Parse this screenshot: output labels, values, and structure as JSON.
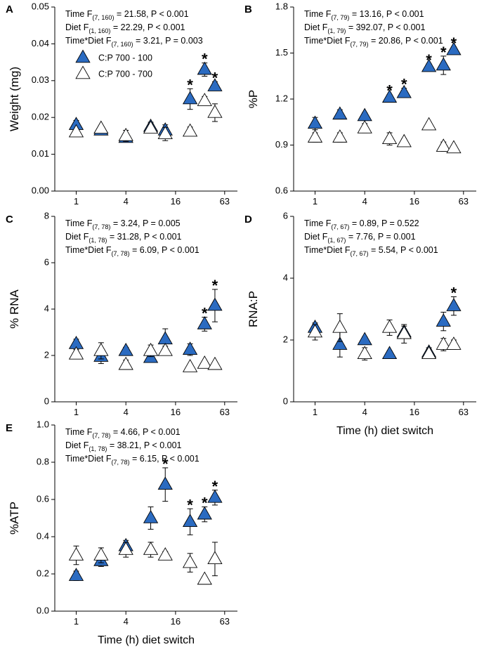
{
  "colors": {
    "filled": "#2b6bc1",
    "filled_dark": "#1a3e9c",
    "open": "#ffffff",
    "stroke": "#000000"
  },
  "x_axis": {
    "label": "Time (h) diet switch",
    "tick_values": [
      1,
      4,
      16,
      63
    ],
    "tick_labels": [
      "1",
      "4",
      "16",
      "63"
    ],
    "scale": "log2",
    "xlim": [
      0.55,
      90
    ]
  },
  "legend": {
    "entries": [
      {
        "label": "C:P 700 - 100",
        "marker": "filled-triangle"
      },
      {
        "label": "C:P 700 - 700",
        "marker": "open-triangle"
      }
    ]
  },
  "chart_data": [
    {
      "type": "scatter",
      "letter": "A",
      "ylabel": "Weight (mg)",
      "ylim": [
        0,
        0.05
      ],
      "yticks": [
        0,
        0.01,
        0.02,
        0.03,
        0.04,
        0.05
      ],
      "ytick_labels": [
        "0.00",
        "0.01",
        "0.02",
        "0.03",
        "0.04",
        "0.05"
      ],
      "x": [
        1,
        2,
        4,
        8,
        12,
        24,
        36,
        48
      ],
      "stats": [
        {
          "prefix": "Time F",
          "sub": "(7, 160)",
          "rest": " = 21.58, P < 0.001"
        },
        {
          "prefix": "Diet F",
          "sub": "(1, 160)",
          "rest": " = 22.29, P < 0.001"
        },
        {
          "prefix": "Time*Diet F",
          "sub": "(7, 160)",
          "rest": " = 3.21, P = 0.003"
        }
      ],
      "series": [
        {
          "name": "C:P 700 - 100",
          "style": "filled",
          "values": [
            0.018,
            0.0165,
            0.0145,
            0.0175,
            0.0165,
            0.025,
            0.033,
            0.0285
          ],
          "errors": [
            0.0012,
            0.0006,
            0.0006,
            0.0012,
            0.0015,
            0.0028,
            0.0018,
            0.0012
          ]
        },
        {
          "name": "C:P 700 - 700",
          "style": "open",
          "values": [
            0.016,
            0.017,
            0.015,
            0.017,
            0.0155,
            0.0162,
            0.0245,
            0.0213
          ],
          "errors": [
            0.0007,
            0.0004,
            0.0015,
            0.0012,
            0.0018,
            0.0012,
            0.0012,
            0.0024
          ]
        }
      ],
      "significant_x": [
        24,
        36,
        48
      ],
      "star_label": "*"
    },
    {
      "type": "scatter",
      "letter": "B",
      "ylabel": "%P",
      "ylim": [
        0.6,
        1.8
      ],
      "yticks": [
        0.6,
        0.9,
        1.2,
        1.5,
        1.8
      ],
      "ytick_labels": [
        "0.6",
        "0.9",
        "1.2",
        "1.5",
        "1.8"
      ],
      "x": [
        1,
        2,
        4,
        8,
        12,
        24,
        36,
        48
      ],
      "stats": [
        {
          "prefix": "Time F",
          "sub": "(7, 79)",
          "rest": " = 13.16, P < 0.001"
        },
        {
          "prefix": "Diet F",
          "sub": "(1, 79)",
          "rest": " = 392.07, P < 0.001"
        },
        {
          "prefix": "Time*Diet F",
          "sub": "(7, 79)",
          "rest": " = 20.86, P < 0.001"
        }
      ],
      "series": [
        {
          "name": "C:P 700 - 100",
          "style": "filled",
          "values": [
            1.04,
            1.1,
            1.09,
            1.21,
            1.24,
            1.41,
            1.42,
            1.52
          ],
          "errors": [
            0.04,
            0.03,
            0.02,
            0.02,
            0.03,
            0.02,
            0.06,
            0.02
          ]
        },
        {
          "name": "C:P 700 - 700",
          "style": "open",
          "values": [
            0.95,
            0.95,
            1.01,
            0.94,
            0.92,
            1.03,
            0.89,
            0.88
          ],
          "errors": [
            0.03,
            0.03,
            0.03,
            0.04,
            0.02,
            0.02,
            0.03,
            0.02
          ]
        }
      ],
      "significant_x": [
        8,
        12,
        24,
        36,
        48
      ],
      "star_label": "*"
    },
    {
      "type": "scatter",
      "letter": "C",
      "ylabel": "% RNA",
      "ylim": [
        0,
        8
      ],
      "yticks": [
        0,
        2,
        4,
        6,
        8
      ],
      "ytick_labels": [
        "0",
        "2",
        "4",
        "6",
        "8"
      ],
      "x": [
        1,
        2,
        4,
        8,
        12,
        24,
        36,
        48
      ],
      "stats": [
        {
          "prefix": "Time F",
          "sub": "(7, 78)",
          "rest": " = 3.24, P = 0.005"
        },
        {
          "prefix": "Diet F",
          "sub": "(1, 78)",
          "rest": " = 31.28, P < 0.001"
        },
        {
          "prefix": "Time*Diet F",
          "sub": "(7, 78)",
          "rest": " = 6.09, P < 0.001"
        }
      ],
      "series": [
        {
          "name": "C:P 700 - 100",
          "style": "filled",
          "values": [
            2.5,
            1.95,
            2.2,
            1.9,
            2.7,
            2.25,
            3.35,
            4.15
          ],
          "errors": [
            0.2,
            0.3,
            0.15,
            0.15,
            0.45,
            0.25,
            0.3,
            0.7
          ]
        },
        {
          "name": "C:P 700 - 700",
          "style": "open",
          "values": [
            2.05,
            2.2,
            1.6,
            2.2,
            2.2,
            1.5,
            1.65,
            1.6
          ],
          "errors": [
            0.2,
            0.35,
            0.2,
            0.25,
            0.2,
            0.1,
            0.1,
            0.1
          ]
        }
      ],
      "significant_x": [
        36,
        48
      ],
      "star_label": "*"
    },
    {
      "type": "scatter",
      "letter": "D",
      "ylabel": "RNA:P",
      "ylim": [
        0,
        6
      ],
      "yticks": [
        0,
        2,
        4,
        6
      ],
      "ytick_labels": [
        "0",
        "2",
        "4",
        "6"
      ],
      "x": [
        1,
        2,
        4,
        8,
        12,
        24,
        36,
        48
      ],
      "stats": [
        {
          "prefix": "Time F",
          "sub": "(7, 67)",
          "rest": " = 0.89, P = 0.522"
        },
        {
          "prefix": "Diet F",
          "sub": "(1, 67)",
          "rest": " = 7.76, P = 0.001"
        },
        {
          "prefix": "Time*Diet F",
          "sub": "(7, 67)",
          "rest": " = 5.54, P < 0.001"
        }
      ],
      "series": [
        {
          "name": "C:P 700 - 100",
          "style": "filled",
          "values": [
            2.4,
            1.85,
            2.0,
            1.55,
            2.25,
            1.6,
            2.6,
            3.1
          ],
          "errors": [
            0.15,
            0.4,
            0.1,
            0.1,
            0.2,
            0.15,
            0.3,
            0.3
          ]
        },
        {
          "name": "C:P 700 - 700",
          "style": "open",
          "values": [
            2.25,
            2.4,
            1.55,
            2.4,
            2.2,
            1.55,
            1.85,
            1.85
          ],
          "errors": [
            0.25,
            0.45,
            0.2,
            0.25,
            0.3,
            0.15,
            0.2,
            0.15
          ]
        }
      ],
      "significant_x": [
        48
      ],
      "star_label": "*"
    },
    {
      "type": "scatter",
      "letter": "E",
      "ylabel": "%ATP",
      "ylim": [
        0,
        1.0
      ],
      "yticks": [
        0,
        0.2,
        0.4,
        0.6,
        0.8,
        1.0
      ],
      "ytick_labels": [
        "0.0",
        "0.2",
        "0.4",
        "0.6",
        "0.8",
        "1.0"
      ],
      "x": [
        1,
        2,
        4,
        8,
        12,
        24,
        36,
        48
      ],
      "stats": [
        {
          "prefix": "Time F",
          "sub": "(7, 78)",
          "rest": " = 4.66, P < 0.001"
        },
        {
          "prefix": "Diet F",
          "sub": "(1, 78)",
          "rest": " = 38.21, P < 0.001"
        },
        {
          "prefix": "Time*Diet F",
          "sub": "(7, 78)",
          "rest": " = 6.15, P < 0.001"
        }
      ],
      "series": [
        {
          "name": "C:P 700 - 100",
          "style": "filled",
          "values": [
            0.19,
            0.27,
            0.35,
            0.5,
            0.68,
            0.48,
            0.52,
            0.61
          ],
          "errors": [
            0.025,
            0.03,
            0.03,
            0.06,
            0.09,
            0.07,
            0.04,
            0.04
          ]
        },
        {
          "name": "C:P 700 - 700",
          "style": "open",
          "values": [
            0.3,
            0.3,
            0.33,
            0.33,
            0.3,
            0.26,
            0.17,
            0.28
          ],
          "errors": [
            0.05,
            0.04,
            0.04,
            0.04,
            0.02,
            0.05,
            0.015,
            0.09
          ]
        }
      ],
      "significant_x": [
        12,
        24,
        36,
        48
      ],
      "star_label": "*"
    }
  ]
}
